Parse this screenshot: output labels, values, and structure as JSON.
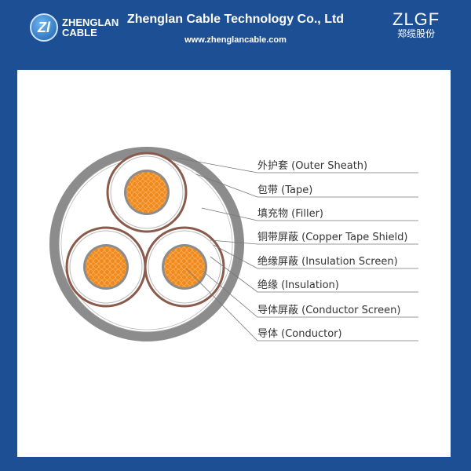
{
  "header": {
    "logo_mark": "Zl",
    "logo_line1": "ZHENGLAN",
    "logo_line2": "CABLE",
    "title": "Zhenglan Cable Technology Co., Ltd",
    "url": "www.zhenglancable.com",
    "brand_latin": "ZLGF",
    "brand_cn": "郑缆股份"
  },
  "diagram": {
    "labels": [
      "外护套 (Outer Sheath)",
      "包带 (Tape)",
      "填充物 (Filler)",
      "铜带屏蔽 (Copper Tape Shield)",
      "绝缘屏蔽 (Insulation Screen)",
      "绝缘 (Insulation)",
      "导体屏蔽 (Conductor Screen)",
      "导体 (Conductor)"
    ]
  },
  "colors": {
    "header_bg": "#1d4f95",
    "sheath": "#8a8a8a",
    "copper": "#f08a1c",
    "shield": "#8a5a4a"
  }
}
